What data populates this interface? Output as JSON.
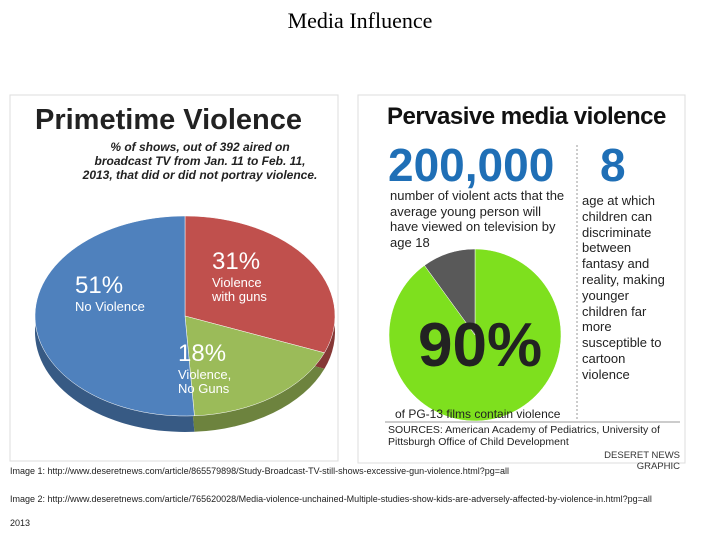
{
  "title": "Media Influence",
  "chart_data": [
    {
      "type": "pie",
      "title": "Primetime Violence",
      "subtitle": "% of shows, out of 392 aired on broadcast TV from Jan. 11 to Feb. 11, 2013, that did or did not portray violence.",
      "categories": [
        "Violence with guns",
        "Violence, No Guns",
        "No Violence"
      ],
      "values": [
        31,
        18,
        51
      ],
      "value_labels": [
        "31%",
        "18%",
        "51%"
      ],
      "colors": [
        "#c0504d",
        "#9bbb59",
        "#4f81bd"
      ]
    },
    {
      "type": "pie",
      "title": "Pervasive media violence",
      "values": [
        90,
        10
      ],
      "value_labels": [
        "90%",
        null
      ],
      "colors": [
        "#7ee01e",
        "#595959"
      ],
      "annotation": "of PG-13 films contain violence"
    }
  ],
  "infographic": {
    "stats": [
      {
        "value": "200,000",
        "text": "number of violent acts that the average young person will have viewed on television by age 18"
      },
      {
        "value": "8",
        "text": "age at which children can discriminate between fantasy and reality, making younger children far more susceptible to cartoon violence"
      }
    ],
    "sources": "SOURCES: American Academy of Pediatrics, University of Pittsburgh Office of Child Development",
    "credit": "DESERET NEWS GRAPHIC"
  },
  "captions": [
    "Image 1: http://www.deseretnews.com/article/865579898/Study-Broadcast-TV-still-shows-excessive-gun-violence.html?pg=all",
    "Image 2: http://www.deseretnews.com/article/765620028/Media-violence-unchained-Multiple-studies-show-kids-are-adversely-affected-by-violence-in.html?pg=all",
    "2013"
  ]
}
